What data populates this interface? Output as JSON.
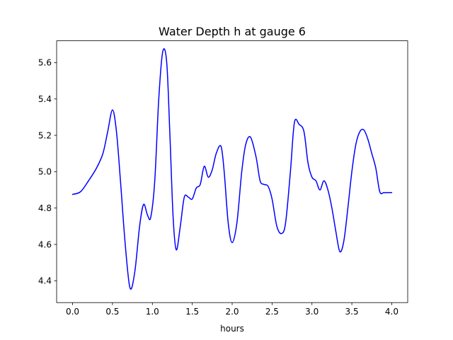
{
  "chart_data": {
    "type": "line",
    "title": "Water Depth h at gauge 6",
    "xlabel": "hours",
    "ylabel": "",
    "xlim": [
      -0.2,
      4.2
    ],
    "ylim": [
      4.28,
      5.72
    ],
    "grid": false,
    "x_ticks": [
      0.0,
      0.5,
      1.0,
      1.5,
      2.0,
      2.5,
      3.0,
      3.5,
      4.0
    ],
    "x_tick_labels": [
      "0.0",
      "0.5",
      "1.0",
      "1.5",
      "2.0",
      "2.5",
      "3.0",
      "3.5",
      "4.0"
    ],
    "y_ticks": [
      4.4,
      4.6,
      4.8,
      5.0,
      5.2,
      5.4,
      5.6
    ],
    "y_tick_labels": [
      "4.4",
      "4.6",
      "4.8",
      "5.0",
      "5.2",
      "5.4",
      "5.6"
    ],
    "series": [
      {
        "color": "#0000ff",
        "x": [
          0.0,
          0.1,
          0.2,
          0.3,
          0.38,
          0.44,
          0.5,
          0.55,
          0.6,
          0.66,
          0.72,
          0.78,
          0.84,
          0.89,
          0.94,
          0.98,
          1.03,
          1.08,
          1.13,
          1.18,
          1.22,
          1.26,
          1.3,
          1.35,
          1.4,
          1.45,
          1.5,
          1.55,
          1.6,
          1.65,
          1.7,
          1.75,
          1.8,
          1.86,
          1.9,
          1.95,
          2.0,
          2.06,
          2.12,
          2.17,
          2.23,
          2.3,
          2.35,
          2.4,
          2.45,
          2.5,
          2.56,
          2.62,
          2.67,
          2.73,
          2.78,
          2.84,
          2.9,
          2.95,
          3.0,
          3.05,
          3.1,
          3.15,
          3.2,
          3.25,
          3.3,
          3.35,
          3.4,
          3.45,
          3.5,
          3.55,
          3.6,
          3.65,
          3.7,
          3.75,
          3.8,
          3.85,
          3.9,
          3.95,
          4.0
        ],
        "y": [
          4.875,
          4.89,
          4.95,
          5.02,
          5.1,
          5.22,
          5.34,
          5.22,
          4.95,
          4.6,
          4.36,
          4.45,
          4.7,
          4.82,
          4.76,
          4.75,
          4.95,
          5.4,
          5.66,
          5.6,
          5.2,
          4.75,
          4.57,
          4.7,
          4.86,
          4.86,
          4.85,
          4.91,
          4.93,
          5.03,
          4.97,
          5.01,
          5.1,
          5.14,
          5.0,
          4.72,
          4.61,
          4.72,
          5.0,
          5.15,
          5.19,
          5.08,
          4.95,
          4.93,
          4.92,
          4.85,
          4.7,
          4.66,
          4.72,
          5.0,
          5.27,
          5.26,
          5.22,
          5.05,
          4.97,
          4.95,
          4.9,
          4.95,
          4.9,
          4.8,
          4.67,
          4.56,
          4.62,
          4.8,
          5.0,
          5.15,
          5.22,
          5.23,
          5.18,
          5.1,
          5.02,
          4.89,
          4.885,
          4.885,
          4.885
        ]
      }
    ]
  }
}
